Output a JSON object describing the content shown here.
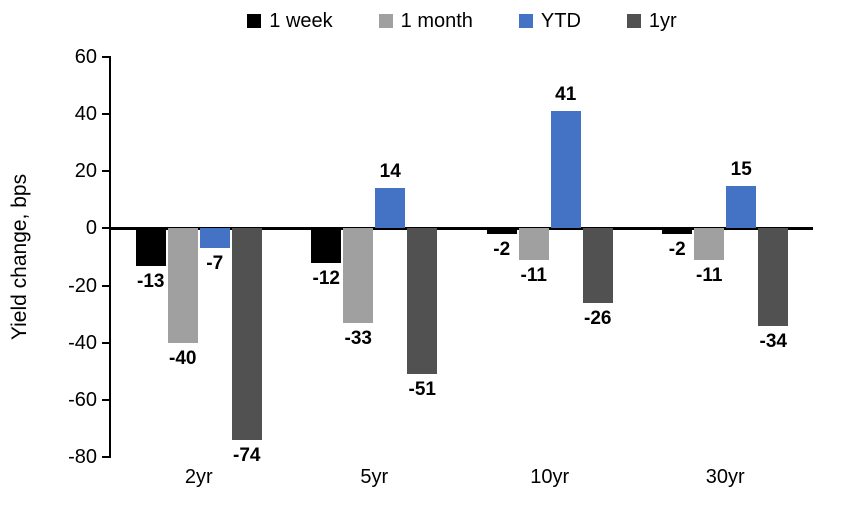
{
  "chart_data": {
    "type": "bar",
    "title": "",
    "xlabel": "",
    "ylabel": "Yield change, bps",
    "categories": [
      "2yr",
      "5yr",
      "10yr",
      "30yr"
    ],
    "series": [
      {
        "name": "1 week",
        "color": "#000000",
        "values": [
          -13,
          -12,
          -2,
          -2
        ]
      },
      {
        "name": "1 month",
        "color": "#A0A0A0",
        "values": [
          -40,
          -33,
          -11,
          -11
        ]
      },
      {
        "name": "YTD",
        "color": "#4472C4",
        "values": [
          -7,
          14,
          41,
          15
        ]
      },
      {
        "name": "1yr",
        "color": "#515151",
        "values": [
          -74,
          -51,
          -26,
          -34
        ]
      }
    ],
    "ylim": [
      -80,
      60
    ],
    "yticks": [
      60,
      40,
      20,
      0,
      -20,
      -40,
      -60,
      -80
    ],
    "grid": false,
    "legend_position": "top",
    "data_labels": true,
    "axis_color": "#000000"
  }
}
